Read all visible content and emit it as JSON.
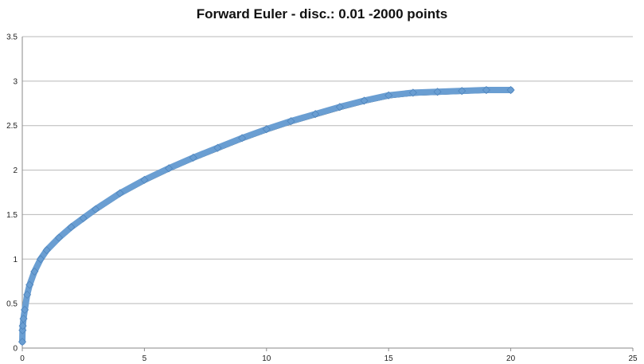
{
  "chart_data": {
    "type": "scatter",
    "title": "Forward Euler - disc.: 0.01  -2000 points",
    "xlabel": "",
    "ylabel": "",
    "xlim": [
      0,
      25
    ],
    "ylim": [
      0,
      3.5
    ],
    "xticks": [
      "0",
      "5",
      "10",
      "15",
      "20",
      "25"
    ],
    "yticks": [
      "0",
      "0.5",
      "1",
      "1.5",
      "2",
      "2.5",
      "3",
      "3.5"
    ],
    "grid": "horizontal",
    "legend": "none",
    "series": [
      {
        "marker": "diamond",
        "color": "#6a9ed2",
        "x": [
          0,
          0.01,
          0.02,
          0.05,
          0.1,
          0.2,
          0.3,
          0.5,
          0.75,
          1,
          1.5,
          2,
          2.5,
          3,
          4,
          5,
          6,
          7,
          8,
          9,
          10,
          11,
          12,
          13,
          14,
          15,
          16,
          17,
          18,
          19,
          20
        ],
        "y": [
          0.07,
          0.2,
          0.25,
          0.33,
          0.43,
          0.6,
          0.71,
          0.86,
          1.0,
          1.1,
          1.24,
          1.36,
          1.46,
          1.56,
          1.74,
          1.89,
          2.02,
          2.14,
          2.25,
          2.36,
          2.46,
          2.55,
          2.63,
          2.71,
          2.78,
          2.84,
          2.87,
          2.88,
          2.89,
          2.9,
          2.9
        ]
      }
    ],
    "reference_line_color": "#000000"
  }
}
